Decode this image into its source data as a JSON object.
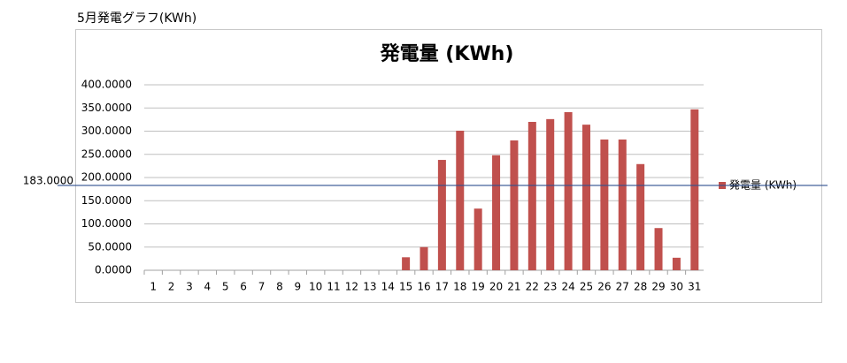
{
  "header": {
    "title": "5月発電グラフ(KWh)"
  },
  "chart_data": {
    "type": "bar",
    "title": "発電量 (KWh)",
    "categories": [
      "1",
      "2",
      "3",
      "4",
      "5",
      "6",
      "7",
      "8",
      "9",
      "10",
      "11",
      "12",
      "13",
      "14",
      "15",
      "16",
      "17",
      "18",
      "19",
      "20",
      "21",
      "22",
      "23",
      "24",
      "25",
      "26",
      "27",
      "28",
      "29",
      "30",
      "31"
    ],
    "series": [
      {
        "name": "発電量 (KWh)",
        "color": "#c0504d",
        "values": [
          0,
          0,
          0,
          0,
          0,
          0,
          0,
          0,
          0,
          0,
          0,
          0,
          0,
          0,
          28,
          50,
          238,
          301,
          133,
          248,
          280,
          320,
          326,
          341,
          314,
          282,
          282,
          229,
          91,
          27,
          347
        ]
      }
    ],
    "ylim": [
      0,
      400
    ],
    "yticks": [
      {
        "value": 0,
        "label": "0.0000"
      },
      {
        "value": 50,
        "label": "50.0000"
      },
      {
        "value": 100,
        "label": "100.0000"
      },
      {
        "value": 150,
        "label": "150.0000"
      },
      {
        "value": 200,
        "label": "200.0000"
      },
      {
        "value": 250,
        "label": "250.0000"
      },
      {
        "value": 300,
        "label": "300.0000"
      },
      {
        "value": 350,
        "label": "350.0000"
      },
      {
        "value": 400,
        "label": "400.0000"
      }
    ],
    "grid": true,
    "legend": "right",
    "reference_line": {
      "value": 183,
      "label": "183.0000",
      "color": "#2f4f8f"
    }
  }
}
